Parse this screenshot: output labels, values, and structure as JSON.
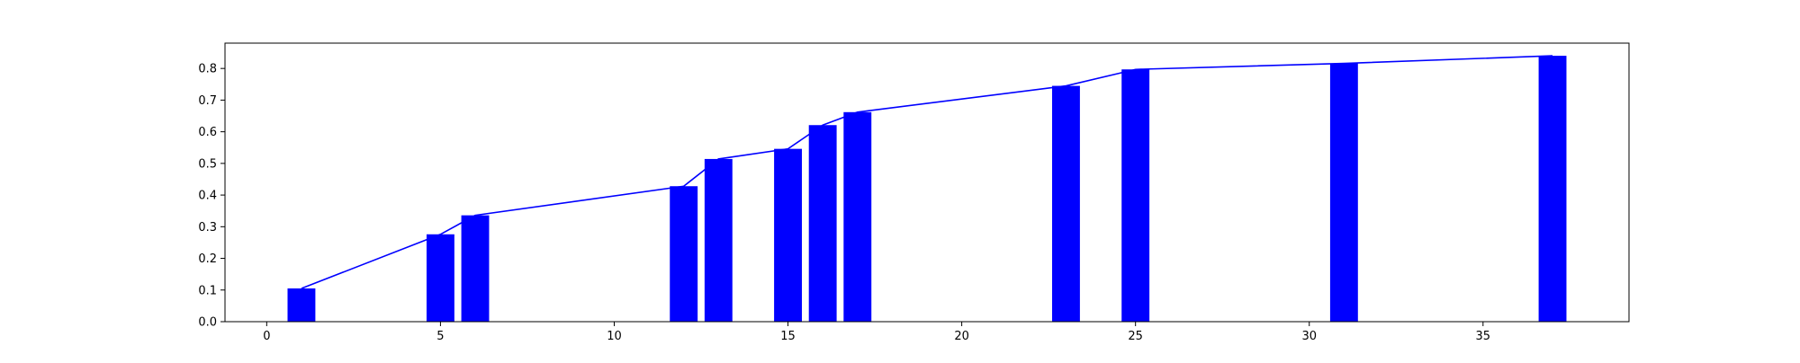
{
  "chart_data": {
    "type": "bar",
    "title": "",
    "xlabel": "",
    "ylabel": "",
    "xlim": [
      -1.2,
      39.2
    ],
    "ylim": [
      0,
      0.88
    ],
    "grid": false,
    "x_ticks": [
      0,
      5,
      10,
      15,
      20,
      25,
      30,
      35
    ],
    "y_ticks": [
      0.0,
      0.1,
      0.2,
      0.3,
      0.4,
      0.5,
      0.6,
      0.7,
      0.8
    ],
    "x_tick_labels": [
      "0",
      "5",
      "10",
      "15",
      "20",
      "25",
      "30",
      "35"
    ],
    "y_tick_labels": [
      "0.0",
      "0.1",
      "0.2",
      "0.3",
      "0.4",
      "0.5",
      "0.6",
      "0.7",
      "0.8"
    ],
    "bar_color": "#0000ff",
    "line_color": "#0000ff",
    "bar_width": 0.8,
    "x": [
      1,
      5,
      6,
      12,
      13,
      15,
      16,
      17,
      23,
      25,
      31,
      37
    ],
    "bars": [
      0.105,
      0.276,
      0.336,
      0.428,
      0.514,
      0.546,
      0.621,
      0.662,
      0.745,
      0.797,
      0.816,
      0.84
    ],
    "line": [
      0.105,
      0.276,
      0.336,
      0.428,
      0.514,
      0.546,
      0.621,
      0.662,
      0.745,
      0.797,
      0.816,
      0.84
    ]
  }
}
